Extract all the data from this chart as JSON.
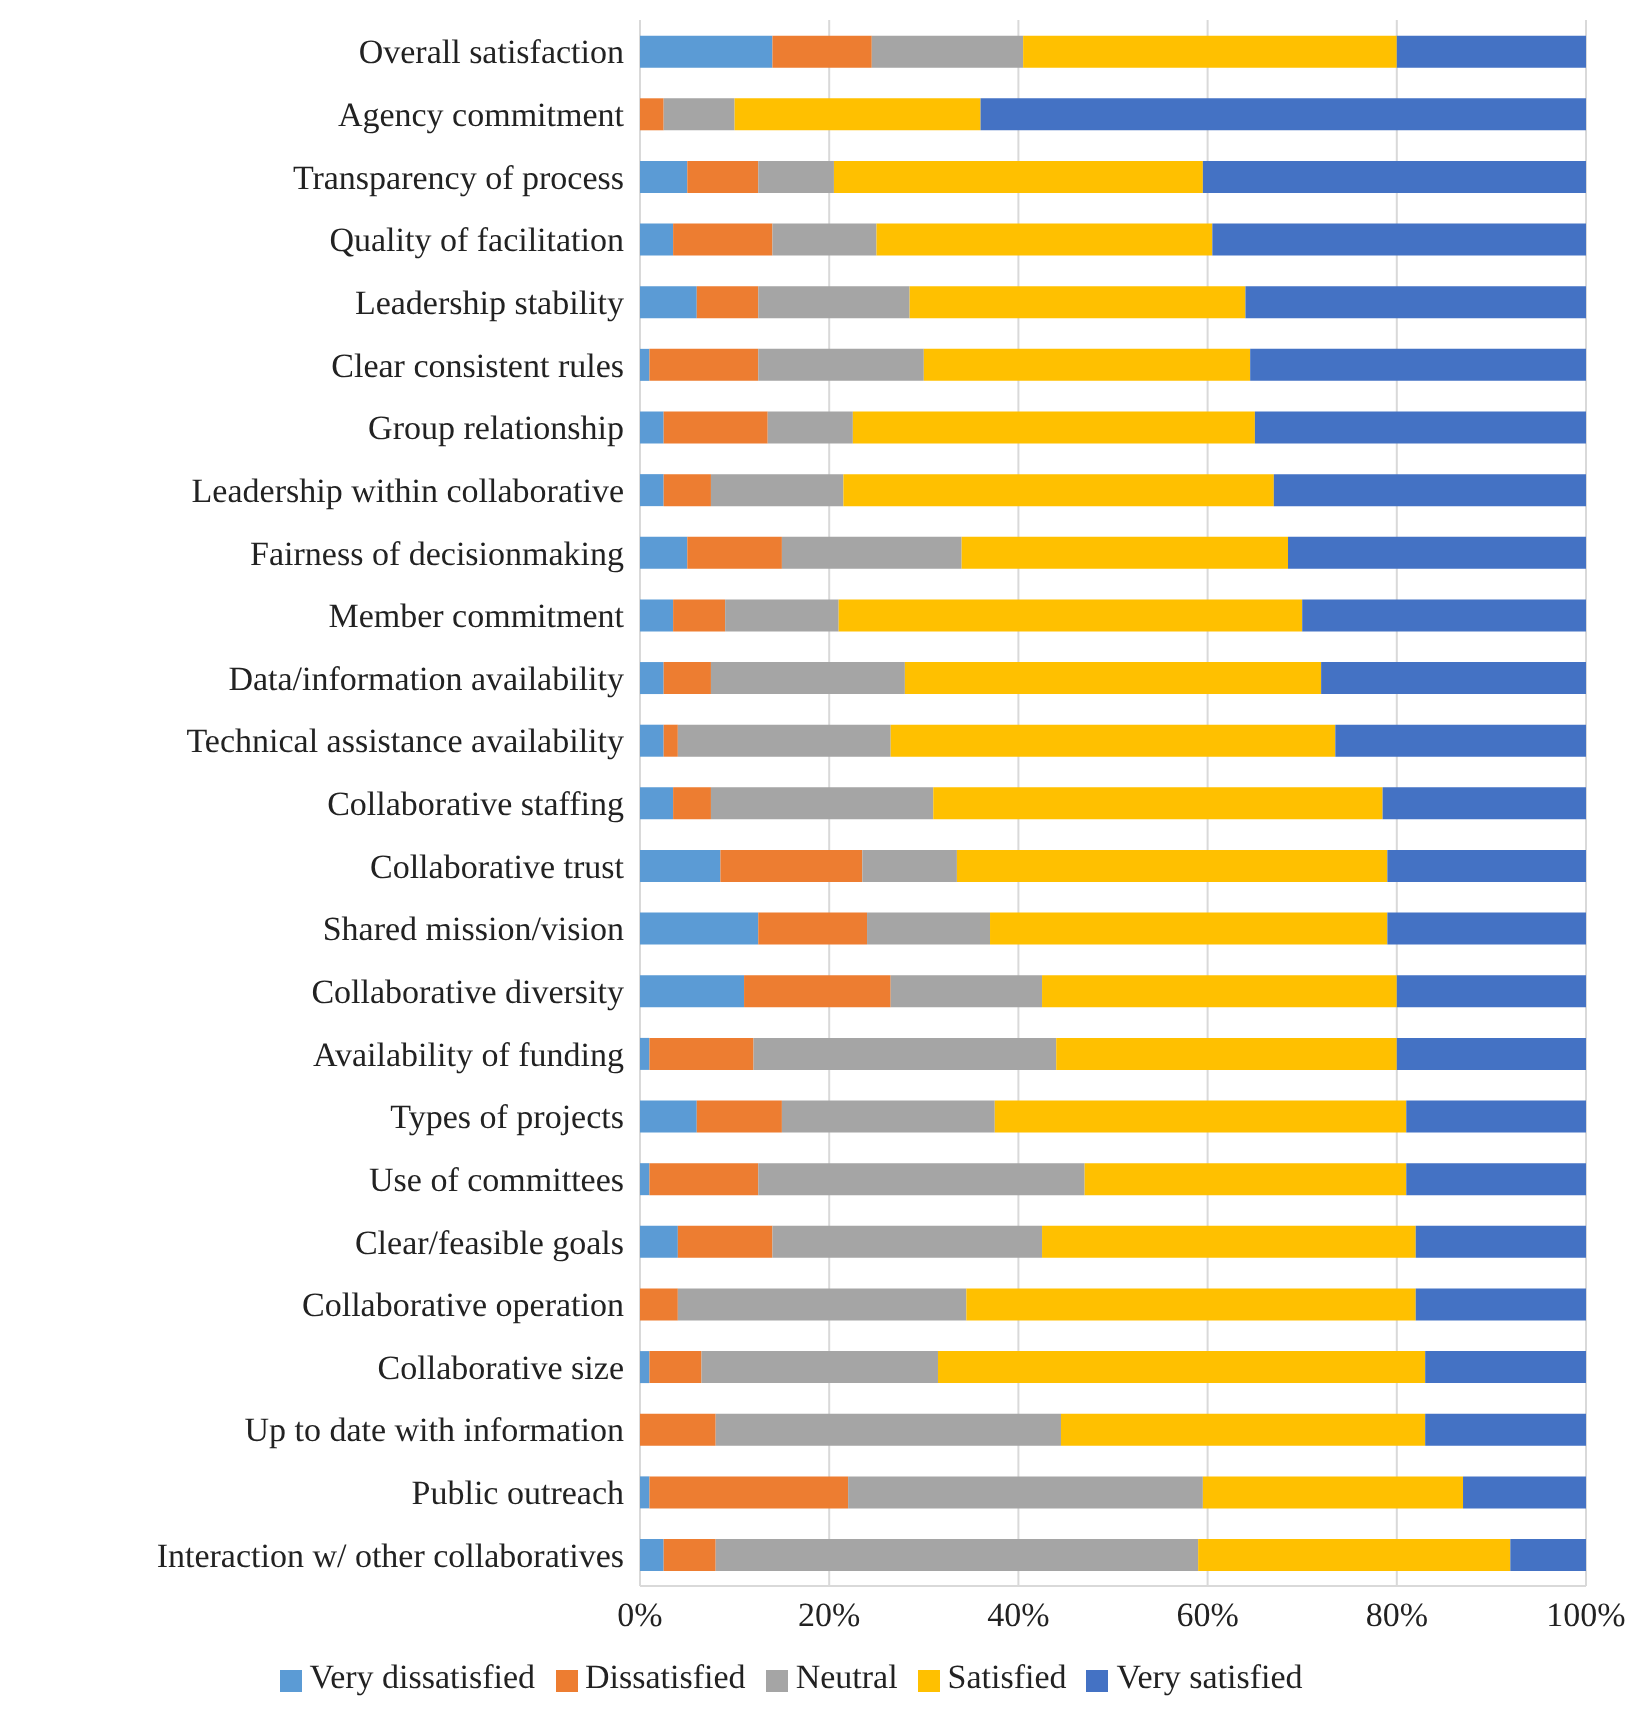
{
  "chart_data": {
    "type": "bar",
    "orientation": "horizontal",
    "stacked": true,
    "categories": [
      "Overall satisfaction",
      "Agency commitment",
      "Transparency of process",
      "Quality of facilitation",
      "Leadership stability",
      "Clear consistent rules",
      "Group relationship",
      "Leadership within collaborative",
      "Fairness of decisionmaking",
      "Member commitment",
      "Data/information availability",
      "Technical assistance availability",
      "Collaborative staffing",
      "Collaborative trust",
      "Shared mission/vision",
      "Collaborative diversity",
      "Availability of funding",
      "Types of projects",
      "Use of committees",
      "Clear/feasible goals",
      "Collaborative operation",
      "Collaborative size",
      "Up to date with information",
      "Public outreach",
      "Interaction w/ other collaboratives"
    ],
    "series": [
      {
        "name": "Very dissatisfied",
        "color": "#5b9bd5",
        "values": [
          14,
          0,
          5,
          3.5,
          6,
          1,
          2.5,
          2.5,
          5,
          3.5,
          2.5,
          2.5,
          3.5,
          8.5,
          12.5,
          11,
          1,
          6,
          1,
          4,
          0,
          1,
          0,
          1,
          2.5
        ]
      },
      {
        "name": "Dissatisfied",
        "color": "#ed7d31",
        "values": [
          10.5,
          2.5,
          7.5,
          10.5,
          6.5,
          11.5,
          11,
          5,
          10,
          5.5,
          5,
          1.5,
          4,
          15,
          11.5,
          15.5,
          11,
          9,
          11.5,
          10,
          4,
          5.5,
          8,
          21,
          5.5
        ]
      },
      {
        "name": "Neutral",
        "color": "#a5a5a5",
        "values": [
          16,
          7.5,
          8,
          11,
          16,
          17.5,
          9,
          14,
          19,
          12,
          20.5,
          22.5,
          23.5,
          10,
          13,
          16,
          32,
          22.5,
          34.5,
          28.5,
          30.5,
          25,
          36.5,
          37.5,
          51
        ]
      },
      {
        "name": "Satisfied",
        "color": "#ffc000",
        "values": [
          39.5,
          26,
          39,
          35.5,
          35.5,
          34.5,
          42.5,
          45.5,
          34.5,
          49,
          44,
          47,
          47.5,
          45.5,
          42,
          37.5,
          36,
          43.5,
          34,
          39.5,
          47.5,
          51.5,
          38.5,
          27.5,
          33
        ]
      },
      {
        "name": "Very satisfied",
        "color": "#4472c4",
        "values": [
          20,
          64,
          40.5,
          39.5,
          36,
          35.5,
          35,
          33,
          31.5,
          30,
          28,
          26.5,
          21.5,
          21,
          21,
          20,
          20,
          19,
          19,
          18,
          18,
          17,
          17,
          13,
          8
        ]
      }
    ],
    "xlim": [
      0,
      100
    ],
    "xticks": [
      {
        "value": 0,
        "label": "0%"
      },
      {
        "value": 20,
        "label": "20%"
      },
      {
        "value": 40,
        "label": "40%"
      },
      {
        "value": 60,
        "label": "60%"
      },
      {
        "value": 80,
        "label": "80%"
      },
      {
        "value": 100,
        "label": "100%"
      }
    ],
    "grid": "x",
    "legend": "bottom"
  }
}
